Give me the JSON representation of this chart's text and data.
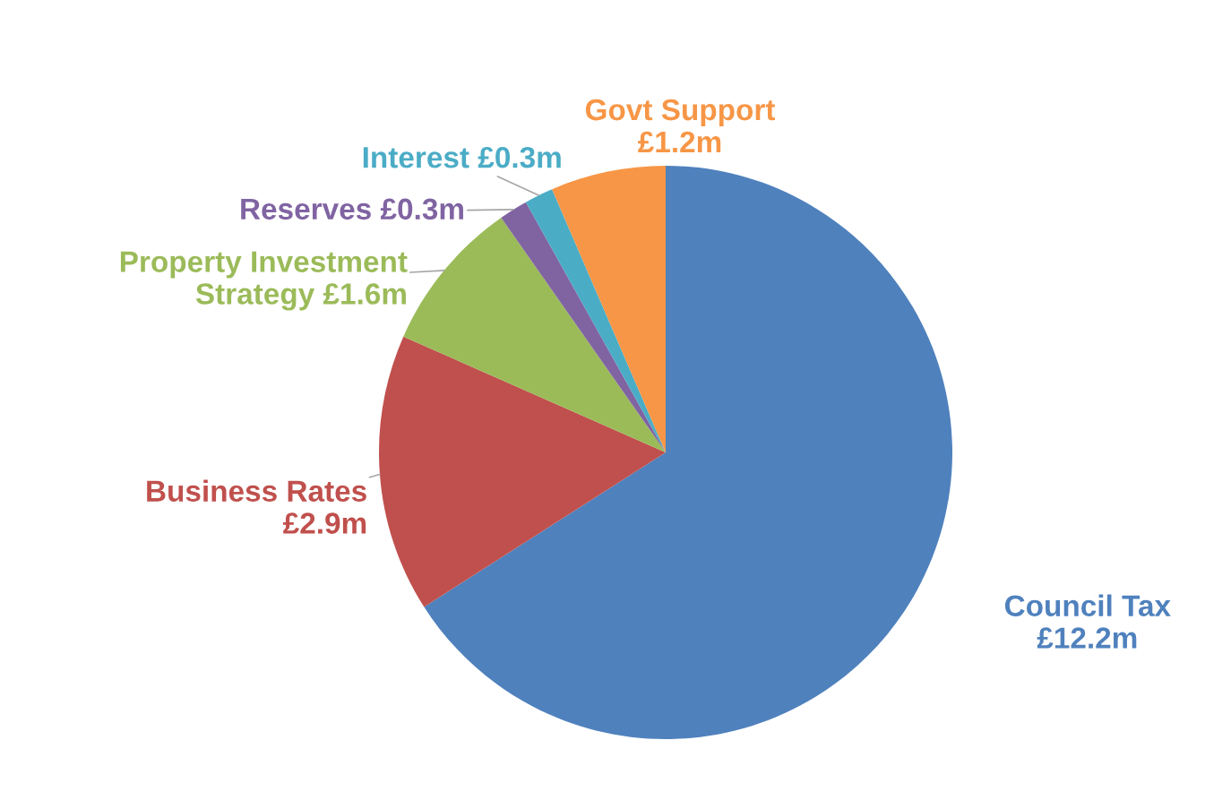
{
  "chart_data": {
    "type": "pie",
    "categories": [
      "Council Tax",
      "Business Rates",
      "Property Investment Strategy",
      "Reserves",
      "Interest",
      "Govt Support"
    ],
    "values": [
      12.2,
      2.9,
      1.6,
      0.3,
      0.3,
      1.2
    ],
    "value_labels": [
      "£12.2m",
      "£2.9m",
      "£1.6m",
      "£0.3m",
      "£0.3m",
      "£1.2m"
    ],
    "colors": [
      "#4f81bd",
      "#c0504d",
      "#9bbb59",
      "#8064a2",
      "#4bacc6",
      "#f79646"
    ],
    "legend": false
  }
}
